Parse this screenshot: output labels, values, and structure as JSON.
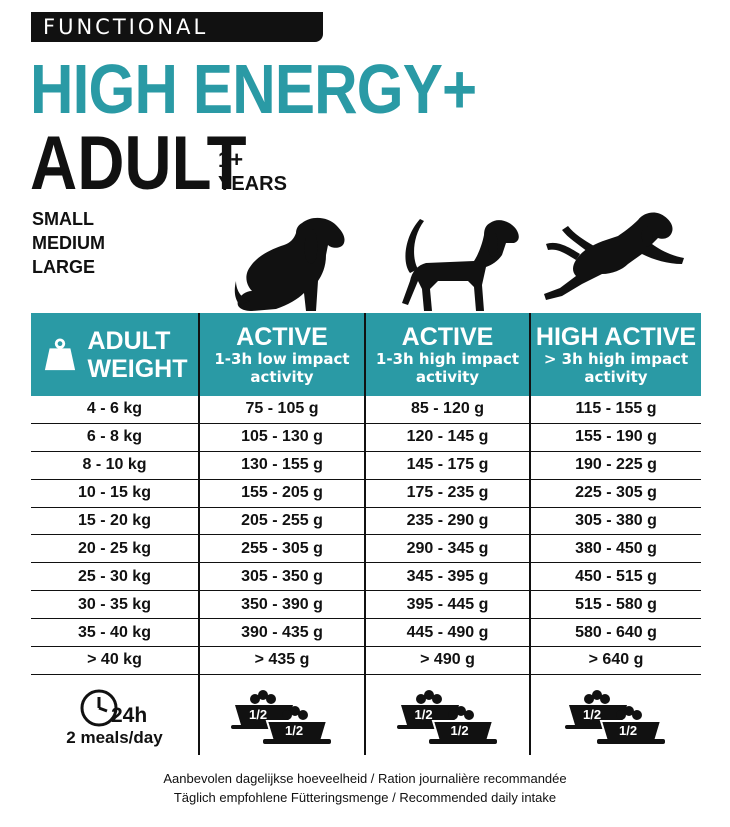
{
  "badge": "FUNCTIONAL",
  "title_line1": "HIGH ENERGY+",
  "title_line2": "ADULT",
  "age": {
    "number": "1+",
    "unit": "YEARS"
  },
  "sizes": [
    "SMALL",
    "MEDIUM",
    "LARGE"
  ],
  "icons": [
    "sitting-dog-icon",
    "standing-dog-icon",
    "jumping-dog-icon",
    "weight-kg-icon",
    "clock-24h-icon",
    "food-bowl-icon"
  ],
  "accent_color": "#2a9aa5",
  "table": {
    "headers": [
      {
        "main": "ADULT\nWEIGHT",
        "kg_label": "KG"
      },
      {
        "main": "ACTIVE",
        "sub1": "1-3h low impact",
        "sub2": "activity"
      },
      {
        "main": "ACTIVE",
        "sub1": "1-3h high impact",
        "sub2": "activity"
      },
      {
        "main": "HIGH ACTIVE",
        "sub1": "> 3h high impact",
        "sub2": "activity"
      }
    ],
    "rows": [
      [
        "4 - 6 kg",
        "75 - 105 g",
        "85 - 120 g",
        "115 - 155 g"
      ],
      [
        "6 - 8 kg",
        "105 - 130 g",
        "120 - 145 g",
        "155 - 190 g"
      ],
      [
        "8 - 10 kg",
        "130 - 155 g",
        "145 - 175 g",
        "190 - 225 g"
      ],
      [
        "10 - 15 kg",
        "155 - 205 g",
        "175 - 235 g",
        "225 - 305 g"
      ],
      [
        "15 - 20 kg",
        "205 - 255 g",
        "235 - 290 g",
        "305 - 380 g"
      ],
      [
        "20 - 25 kg",
        "255 - 305 g",
        "290 - 345 g",
        "380 - 450 g"
      ],
      [
        "25 - 30 kg",
        "305 - 350 g",
        "345 - 395 g",
        "450 - 515 g"
      ],
      [
        "30 - 35 kg",
        "350 - 390 g",
        "395 - 445 g",
        "515 - 580 g"
      ],
      [
        "35 - 40 kg",
        "390 - 435 g",
        "445 - 490 g",
        "580 - 640 g"
      ],
      [
        "> 40 kg",
        "> 435 g",
        "> 490 g",
        "> 640 g"
      ]
    ],
    "meals": {
      "clock_label": "24h",
      "text": "2 meals/day",
      "bowl_label": "1/2"
    }
  },
  "footer": {
    "line1": "Aanbevolen dagelijkse hoeveelheid / Ration journalière recommandée",
    "line2": "Täglich empfohlene Fütteringsmenge / Recommended daily intake"
  }
}
